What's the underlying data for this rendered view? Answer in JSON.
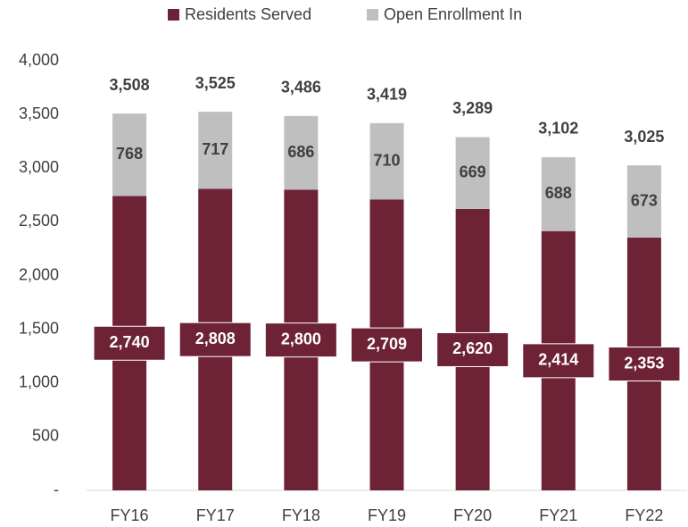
{
  "chart_data": {
    "type": "stacked_bar",
    "categories": [
      "FY16",
      "FY17",
      "FY18",
      "FY19",
      "FY20",
      "FY21",
      "FY22"
    ],
    "series": [
      {
        "name": "Residents Served",
        "color": "#6d2236",
        "values": [
          2740,
          2808,
          2800,
          2709,
          2620,
          2414,
          2353
        ],
        "value_labels": [
          "2,740",
          "2,808",
          "2,800",
          "2,709",
          "2,620",
          "2,414",
          "2,353"
        ]
      },
      {
        "name": "Open Enrollment In",
        "color": "#bfbfbf",
        "values": [
          768,
          717,
          686,
          710,
          669,
          688,
          673
        ],
        "value_labels": [
          "768",
          "717",
          "686",
          "710",
          "669",
          "688",
          "673"
        ]
      }
    ],
    "totals": [
      3508,
      3525,
      3486,
      3419,
      3289,
      3102,
      3025
    ],
    "total_labels": [
      "3,508",
      "3,525",
      "3,486",
      "3,419",
      "3,289",
      "3,102",
      "3,025"
    ],
    "ylim": [
      0,
      4000
    ],
    "yticks": [
      {
        "value": 0,
        "label": "-"
      },
      500,
      {
        "value": 1000,
        "label": "1,000"
      },
      {
        "value": 1500,
        "label": "1,500"
      },
      {
        "value": 2000,
        "label": "2,000"
      },
      {
        "value": 2500,
        "label": "2,500"
      },
      {
        "value": 3000,
        "label": "3,000"
      },
      {
        "value": 3500,
        "label": "3,500"
      },
      {
        "value": 4000,
        "label": "4,000"
      }
    ],
    "grid": false,
    "legend": "top"
  }
}
